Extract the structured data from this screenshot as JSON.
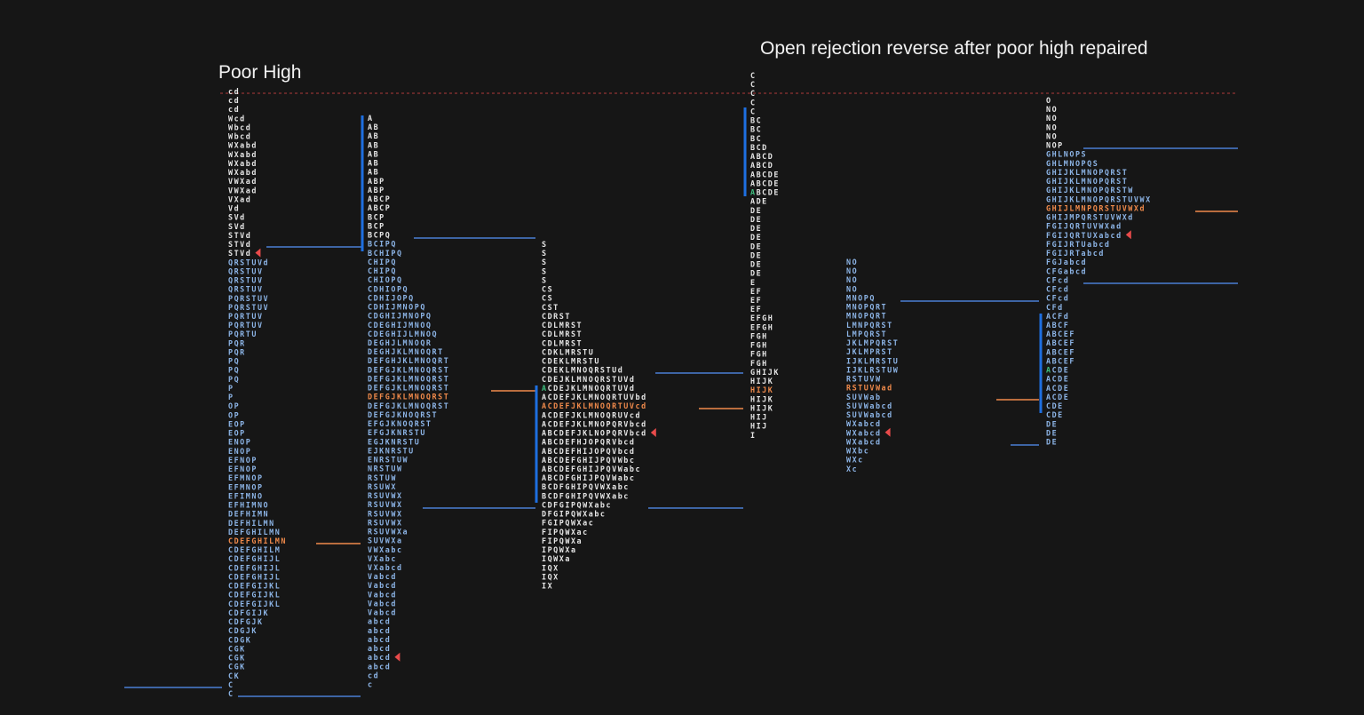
{
  "annotations": {
    "left_title": "Poor High",
    "right_title": "Open rejection reverse after poor high repaired"
  },
  "colors": {
    "background": "#161616",
    "title": "#f2f2f2",
    "letters_white": "#e6e6e6",
    "letters_blue": "#8cb4e6",
    "poc": "#f08a4b",
    "open_marker": "#3fbf7f",
    "value_area_bar": "#1e6fe0",
    "level_line": "#4a7ed4",
    "poc_line": "#f08a4b",
    "close_marker": "#e84a4a",
    "poor_high_line": "#b03a3a"
  },
  "chart_data": {
    "type": "tpo",
    "title": "",
    "profiles": [
      {
        "name": "",
        "rows": [
          "cd",
          "cd",
          "cd",
          "Wcd",
          "Wbcd",
          "Wbcd",
          "WXabd",
          "WXabd",
          "WXabd",
          "WXabd",
          "VWXad",
          "VWXad",
          "VXad",
          "Vd",
          "SVd",
          "SVd",
          "STVd",
          "STVd",
          "STVd",
          "QRSTUVd",
          "QRSTUV",
          "QRSTUV",
          "QRSTUV",
          "PQRSTUV",
          "PQRSTUV",
          "PQRTUV",
          "PQRTUV",
          "PQRTU",
          "PQR",
          "PQR",
          "PQ",
          "PQ",
          "PQ",
          "P",
          "P",
          "OP",
          "OP",
          "EOP",
          "EOP",
          "ENOP",
          "ENOP",
          "EFNOP",
          "EFNOP",
          "EFMNOP",
          "EFMNOP",
          "EFIMNO",
          "EFHIMNO",
          "DEFHIMN",
          "DEFHILMN",
          "DEFGHILMN",
          "CDEFGHILMN",
          "CDEFGHILM",
          "CDEFGHIJL",
          "CDEFGHIJL",
          "CDEFGHIJL",
          "CDEFGIJKL",
          "CDEFGIJKL",
          "CDEFGIJKL",
          "CDFGIJK",
          "CDFGJK",
          "CDGJK",
          "CDGK",
          "CGK",
          "CGK",
          "CGK",
          "CK",
          "C",
          "C"
        ],
        "poc_row": 50,
        "open_row": -1,
        "close_row": 18
      },
      {
        "name": "",
        "rows": [
          "A",
          "AB",
          "AB",
          "AB",
          "AB",
          "AB",
          "AB",
          "ABP",
          "ABP",
          "ABCP",
          "ABCP",
          "BCP",
          "BCP",
          "BCPQ",
          "BCIPQ",
          "BCHIPQ",
          "CHIPQ",
          "CHIPQ",
          "CHIOPQ",
          "CDHIOPQ",
          "CDHIJOPQ",
          "CDHIJMNOPQ",
          "CDGHIJMNOPQ",
          "CDEGHIJMNOQ",
          "CDEGHIJLMNOQ",
          "DEGHJLMNOQR",
          "DEGHJKLMNOQRT",
          "DEFGHJKLMNOQRT",
          "DEFGJKLMNOQRST",
          "DEFGJKLMNOQRST",
          "DEFGJKLMNOQRST",
          "DEFGJKLMNOQRST",
          "DEFGJKLMNOQRST",
          "DEFGJKNOQRST",
          "EFGJKNOQRST",
          "EFGJKNRSTU",
          "EGJKNRSTU",
          "EJKNRSTU",
          "ENRSTUW",
          "NRSTUW",
          "RSTUW",
          "RSUWX",
          "RSUVWX",
          "RSUVWX",
          "RSUVWX",
          "RSUVWX",
          "RSUVWXa",
          "SUVWXa",
          "VWXabc",
          "VXabc",
          "VXabcd",
          "Vabcd",
          "Vabcd",
          "Vabcd",
          "Vabcd",
          "Vabcd",
          "abcd",
          "abcd",
          "abcd",
          "abcd",
          "abcd",
          "abcd",
          "cd",
          "c"
        ],
        "poc_row": 31,
        "open_row": -1,
        "close_row": 60
      },
      {
        "name": "",
        "rows": [
          "S",
          "S",
          "S",
          "S",
          "S",
          "CS",
          "CS",
          "CST",
          "CDRST",
          "CDLMRST",
          "CDLMRST",
          "CDLMRST",
          "CDKLMRSTU",
          "CDEKLMRSTU",
          "CDEKLMNOQRSTUd",
          "CDEJKLMNOQRSTUVd",
          "ACDEJKLMNOQRTUVd",
          "ACDEFJKLMNOQRTUVbd",
          "ACDEFJKLMNOQRTUVcd",
          "ACDEFJKLMNOQRUVcd",
          "ACDEFJKLMNOPQRVbcd",
          "ABCDEFJKLNOPQRVbcd",
          "ABCDEFHJOPQRVbcd",
          "ABCDEFHIJOPQVbcd",
          "ABCDEFGHIJPQVWbc",
          "ABCDEFGHIJPQVWabc",
          "ABCDFGHIJPQVWabc",
          "BCDFGHIPQVWXabc",
          "BCDFGHIPQVWXabc",
          "CDFGIPQWXabc",
          "DFGIPQWXabc",
          "FGIPQWXac",
          "FIPQWXac",
          "FIPQWXa",
          "IPQWXa",
          "IQWXa",
          "IQX",
          "IQX",
          "IX"
        ],
        "poc_row": 18,
        "open_row": 16,
        "close_row": 21
      },
      {
        "name": "",
        "rows": [
          "C",
          "C",
          "C",
          "C",
          "C",
          "BC",
          "BC",
          "BC",
          "BCD",
          "ABCD",
          "ABCD",
          "ABCDE",
          "ABCDE",
          "ABCDE",
          "ADE",
          "DE",
          "DE",
          "DE",
          "DE",
          "DE",
          "DE",
          "DE",
          "DE",
          "E",
          "EF",
          "EF",
          "EF",
          "EFGH",
          "EFGH",
          "FGH",
          "FGH",
          "FGH",
          "FGH",
          "GHIJK",
          "HIJK",
          "HIJK",
          "HIJK",
          "HIJK",
          "HIJ",
          "HIJ",
          "I"
        ],
        "poc_row": 35,
        "open_row": 13,
        "close_row": -1
      },
      {
        "name": "",
        "rows": [
          "NO",
          "NO",
          "NO",
          "NO",
          "MNOPQ",
          "MNOPQRT",
          "MNOPQRT",
          "LMNPQRST",
          "LMPQRST",
          "JKLMPQRST",
          "JKLMPRST",
          "IJKLMRSTU",
          "IJKLRSTUW",
          "RSTUVW",
          "RSTUVWad",
          "SUVWab",
          "SUVWabcd",
          "SUVWabcd",
          "WXabcd",
          "WXabcd",
          "WXabcd",
          "WXbc",
          "WXc",
          "Xc"
        ],
        "poc_row": 14,
        "open_row": -1,
        "close_row": 19
      },
      {
        "name": "",
        "rows": [
          "O",
          "NO",
          "NO",
          "NO",
          "NO",
          "NOP",
          "GHLNOPS",
          "GHLMNOPQS",
          "GHIJKLMNOPQRST",
          "GHIJKLMNOPQRST",
          "GHIJKLMNOPQRSTW",
          "GHIJKLMNOPQRSTUVWX",
          "GHIJLMNPQRSTUVWXd",
          "GHIJMPQRSTUVWXd",
          "FGIJQRTUVWXad",
          "FGIJQRTUXabcd",
          "FGIJRTUabcd",
          "FGIJRTabcd",
          "FGJabcd",
          "CFGabcd",
          "CFcd",
          "CFcd",
          "CFcd",
          "CFd",
          "ACFd",
          "ABCF",
          "ABCEF",
          "ABCEF",
          "ABCEF",
          "ABCEF",
          "ACDE",
          "ACDE",
          "ACDE",
          "ACDE",
          "CDE",
          "CDE",
          "DE",
          "DE",
          "DE"
        ],
        "poc_row": 12,
        "open_row": 30,
        "close_row": 15
      }
    ]
  }
}
